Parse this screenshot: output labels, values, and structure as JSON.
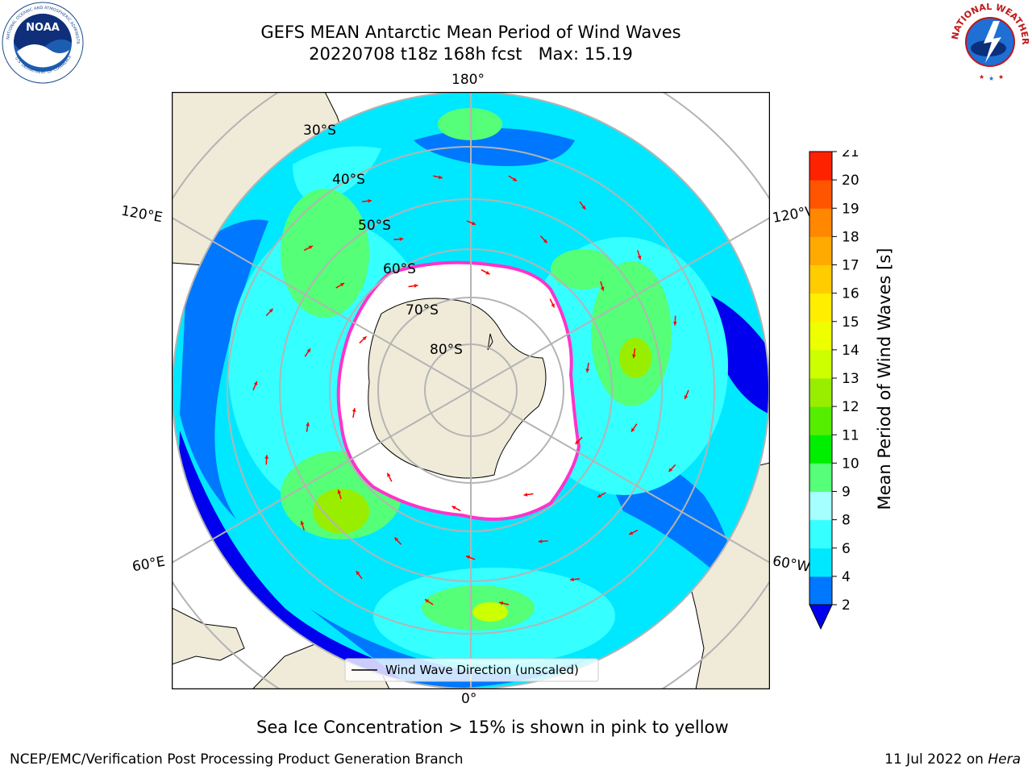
{
  "title": {
    "line1": "GEFS MEAN Antarctic Mean Period of Wind Waves",
    "line2": "20220708 t18z 168h fcst   Max: 15.19"
  },
  "map": {
    "projection": "south-polar-stereographic",
    "lon_labels": {
      "top": "180°",
      "upper_left": "120°E",
      "upper_right": "120°W",
      "lower_left": "60°E",
      "lower_right": "60°W",
      "bottom": "0°"
    },
    "lat_labels": [
      "30°S",
      "40°S",
      "50°S",
      "60°S",
      "70°S",
      "80°S"
    ],
    "legend_text": "Wind Wave Direction (unscaled)",
    "colors": {
      "land": "#efebd8",
      "ice_edge": "#ff33cc",
      "arrow": "#ff0000"
    }
  },
  "colorbar": {
    "label": "Mean Period of Wind Waves [s]",
    "ticks": [
      "2",
      "4",
      "6",
      "8",
      "9",
      "10",
      "11",
      "12",
      "13",
      "14",
      "15",
      "16",
      "17",
      "18",
      "19",
      "20",
      "21"
    ],
    "extend": "min",
    "colors": [
      "#0000ee",
      "#0077ff",
      "#00e8ff",
      "#36ffff",
      "#a6ffff",
      "#55ff77",
      "#00ee00",
      "#55ee00",
      "#99ee00",
      "#ccff00",
      "#eeff00",
      "#ffee00",
      "#ffcc00",
      "#ffaa00",
      "#ff8800",
      "#ff5500",
      "#ff2200",
      "#ff0000"
    ]
  },
  "footnote": "Sea Ice Concentration > 15% is shown in pink to yellow",
  "credit": "NCEP/EMC/Verification Post Processing Product Generation Branch",
  "run_date": {
    "prefix": "11 Jul 2022 on ",
    "machine": "Hera"
  }
}
